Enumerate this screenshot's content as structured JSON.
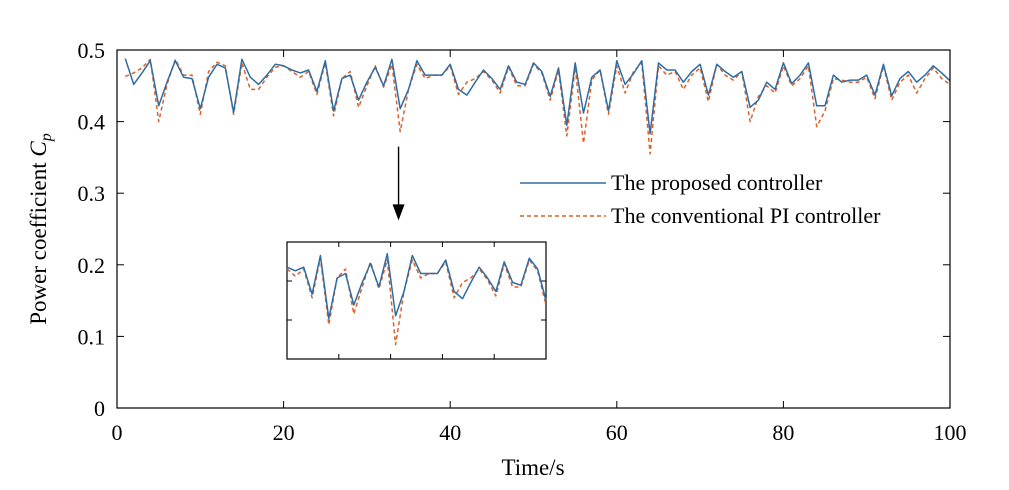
{
  "chart_data": {
    "type": "line",
    "title": "",
    "xlabel": "Time/s",
    "ylabel": "Power coefficient",
    "ylabel_symbol": "C",
    "ylabel_subscript": "p",
    "xlim": [
      0,
      100
    ],
    "ylim": [
      0,
      0.5
    ],
    "xticks": [
      "0",
      "20",
      "40",
      "60",
      "80",
      "100"
    ],
    "yticks": [
      "0",
      "0.1",
      "0.2",
      "0.3",
      "0.4",
      "0.5"
    ],
    "grid": false,
    "legend": "right",
    "series": [
      {
        "name": "The proposed controller",
        "color": "#2e6da4",
        "style": "solid",
        "x": [
          1,
          2,
          3,
          4,
          5,
          6,
          7,
          8,
          9,
          10,
          11,
          12,
          13,
          14,
          15,
          16,
          17,
          18,
          19,
          20,
          21,
          22,
          23,
          24,
          25,
          26,
          27,
          28,
          29,
          30,
          31,
          32,
          33,
          34,
          35,
          36,
          37,
          38,
          39,
          40,
          41,
          42,
          43,
          44,
          45,
          46,
          47,
          48,
          49,
          50,
          51,
          52,
          53,
          54,
          55,
          56,
          57,
          58,
          59,
          60,
          61,
          62,
          63,
          64,
          65,
          66,
          67,
          68,
          69,
          70,
          71,
          72,
          73,
          74,
          75,
          76,
          77,
          78,
          79,
          80,
          81,
          82,
          83,
          84,
          85,
          86,
          87,
          88,
          89,
          90,
          91,
          92,
          93,
          94,
          95,
          96,
          97,
          98,
          99,
          100
        ],
        "y": [
          0.488,
          0.452,
          0.468,
          0.485,
          0.422,
          0.455,
          0.485,
          0.462,
          0.46,
          0.418,
          0.462,
          0.48,
          0.475,
          0.413,
          0.487,
          0.462,
          0.452,
          0.465,
          0.48,
          0.478,
          0.472,
          0.468,
          0.472,
          0.442,
          0.485,
          0.415,
          0.46,
          0.465,
          0.43,
          0.455,
          0.476,
          0.45,
          0.487,
          0.418,
          0.445,
          0.485,
          0.465,
          0.465,
          0.465,
          0.48,
          0.445,
          0.437,
          0.455,
          0.472,
          0.46,
          0.445,
          0.478,
          0.455,
          0.452,
          0.482,
          0.47,
          0.435,
          0.475,
          0.395,
          0.482,
          0.412,
          0.462,
          0.472,
          0.415,
          0.485,
          0.452,
          0.467,
          0.485,
          0.383,
          0.482,
          0.472,
          0.472,
          0.455,
          0.47,
          0.48,
          0.437,
          0.48,
          0.47,
          0.462,
          0.47,
          0.42,
          0.43,
          0.455,
          0.445,
          0.482,
          0.453,
          0.465,
          0.482,
          0.422,
          0.422,
          0.465,
          0.455,
          0.458,
          0.458,
          0.465,
          0.437,
          0.48,
          0.436,
          0.46,
          0.47,
          0.455,
          0.465,
          0.478,
          0.468,
          0.457
        ]
      },
      {
        "name": "The conventional PI controller",
        "color": "#d9622b",
        "style": "dashed",
        "x": [
          1,
          2,
          3,
          4,
          5,
          6,
          7,
          8,
          9,
          10,
          11,
          12,
          13,
          14,
          15,
          16,
          17,
          18,
          19,
          20,
          21,
          22,
          23,
          24,
          25,
          26,
          27,
          28,
          29,
          30,
          31,
          32,
          33,
          34,
          35,
          36,
          37,
          38,
          39,
          40,
          41,
          42,
          43,
          44,
          45,
          46,
          47,
          48,
          49,
          50,
          51,
          52,
          53,
          54,
          55,
          56,
          57,
          58,
          59,
          60,
          61,
          62,
          63,
          64,
          65,
          66,
          67,
          68,
          69,
          70,
          71,
          72,
          73,
          74,
          75,
          76,
          77,
          78,
          79,
          80,
          81,
          82,
          83,
          84,
          85,
          86,
          87,
          88,
          89,
          90,
          91,
          92,
          93,
          94,
          95,
          96,
          97,
          98,
          99,
          100
        ],
        "y": [
          0.463,
          0.468,
          0.475,
          0.487,
          0.4,
          0.452,
          0.487,
          0.465,
          0.465,
          0.41,
          0.47,
          0.483,
          0.478,
          0.41,
          0.482,
          0.445,
          0.445,
          0.462,
          0.476,
          0.478,
          0.47,
          0.462,
          0.47,
          0.438,
          0.482,
          0.408,
          0.46,
          0.47,
          0.42,
          0.45,
          0.478,
          0.448,
          0.48,
          0.386,
          0.445,
          0.48,
          0.46,
          0.465,
          0.465,
          0.478,
          0.438,
          0.455,
          0.46,
          0.47,
          0.458,
          0.44,
          0.476,
          0.45,
          0.45,
          0.48,
          0.468,
          0.43,
          0.472,
          0.38,
          0.475,
          0.37,
          0.458,
          0.472,
          0.41,
          0.478,
          0.44,
          0.47,
          0.482,
          0.355,
          0.478,
          0.465,
          0.47,
          0.445,
          0.465,
          0.475,
          0.428,
          0.48,
          0.465,
          0.458,
          0.47,
          0.4,
          0.435,
          0.45,
          0.44,
          0.478,
          0.45,
          0.46,
          0.478,
          0.393,
          0.415,
          0.46,
          0.458,
          0.455,
          0.455,
          0.462,
          0.432,
          0.478,
          0.43,
          0.455,
          0.465,
          0.44,
          0.46,
          0.475,
          0.46,
          0.452
        ]
      }
    ],
    "annotations": [
      {
        "type": "arrow",
        "at_x": 33.8,
        "from_y": 0.365,
        "to_y": 0.262
      },
      {
        "type": "inset_zoom",
        "x_range": [
          21,
          52
        ],
        "ylim": [
          0.37,
          0.5
        ],
        "note": "magnified view of both series"
      }
    ]
  }
}
